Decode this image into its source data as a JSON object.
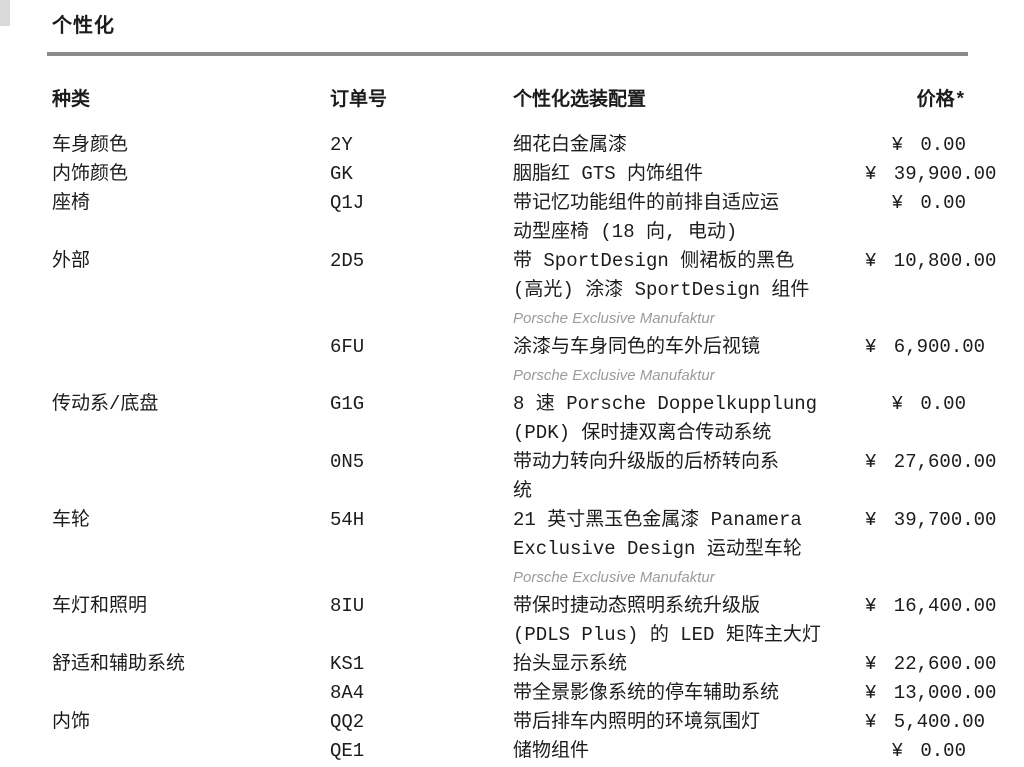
{
  "document": {
    "title": "个性化",
    "colors": {
      "text": "#1c1c1c",
      "divider": "#8b8b8b",
      "note_text": "#9b9b9b"
    },
    "table": {
      "headers": {
        "category": "种类",
        "order_no": "订单号",
        "config": "个性化选装配置",
        "price": "价格*"
      },
      "rows": [
        {
          "category": "车身颜色",
          "code": "2Y",
          "config_lines": [
            "细花白金属漆"
          ],
          "price": "¥ 0.00"
        },
        {
          "category": "内饰颜色",
          "code": "GK",
          "config_lines": [
            "胭脂红 GTS 内饰组件"
          ],
          "price": "¥ 39,900.00"
        },
        {
          "category": "座椅",
          "code": "Q1J",
          "config_lines": [
            "带记忆功能组件的前排自适应运",
            "动型座椅 (18 向, 电动)"
          ],
          "price": "¥ 0.00"
        },
        {
          "category": "外部",
          "code": "2D5",
          "config_lines": [
            "带 SportDesign 侧裙板的黑色",
            "(高光) 涂漆 SportDesign 组件"
          ],
          "note": "Porsche Exclusive Manufaktur",
          "price": "¥ 10,800.00"
        },
        {
          "category": "",
          "code": "6FU",
          "config_lines": [
            "涂漆与车身同色的车外后视镜"
          ],
          "note": "Porsche Exclusive Manufaktur",
          "price": "¥ 6,900.00"
        },
        {
          "category": "传动系/底盘",
          "code": "G1G",
          "config_lines": [
            "8 速 Porsche Doppelkupplung",
            "(PDK) 保时捷双离合传动系统"
          ],
          "price": "¥ 0.00"
        },
        {
          "category": "",
          "code": "0N5",
          "config_lines": [
            "带动力转向升级版的后桥转向系",
            "统"
          ],
          "price": "¥ 27,600.00"
        },
        {
          "category": "车轮",
          "code": "54H",
          "config_lines": [
            "21 英寸黑玉色金属漆 Panamera",
            "Exclusive Design 运动型车轮"
          ],
          "note": "Porsche Exclusive Manufaktur",
          "price": "¥ 39,700.00"
        },
        {
          "category": "车灯和照明",
          "code": "8IU",
          "config_lines": [
            "带保时捷动态照明系统升级版",
            "(PDLS Plus) 的 LED 矩阵主大灯"
          ],
          "price": "¥ 16,400.00"
        },
        {
          "category": "舒适和辅助系统",
          "code": "KS1",
          "config_lines": [
            "抬头显示系统"
          ],
          "price": "¥ 22,600.00"
        },
        {
          "category": "",
          "code": "8A4",
          "config_lines": [
            "带全景影像系统的停车辅助系统"
          ],
          "price": "¥ 13,000.00"
        },
        {
          "category": "内饰",
          "code": "QQ2",
          "config_lines": [
            "带后排车内照明的环境氛围灯"
          ],
          "price": "¥ 5,400.00"
        },
        {
          "category": "",
          "code": "QE1",
          "config_lines": [
            "储物组件"
          ],
          "price": "¥ 0.00"
        }
      ]
    }
  }
}
